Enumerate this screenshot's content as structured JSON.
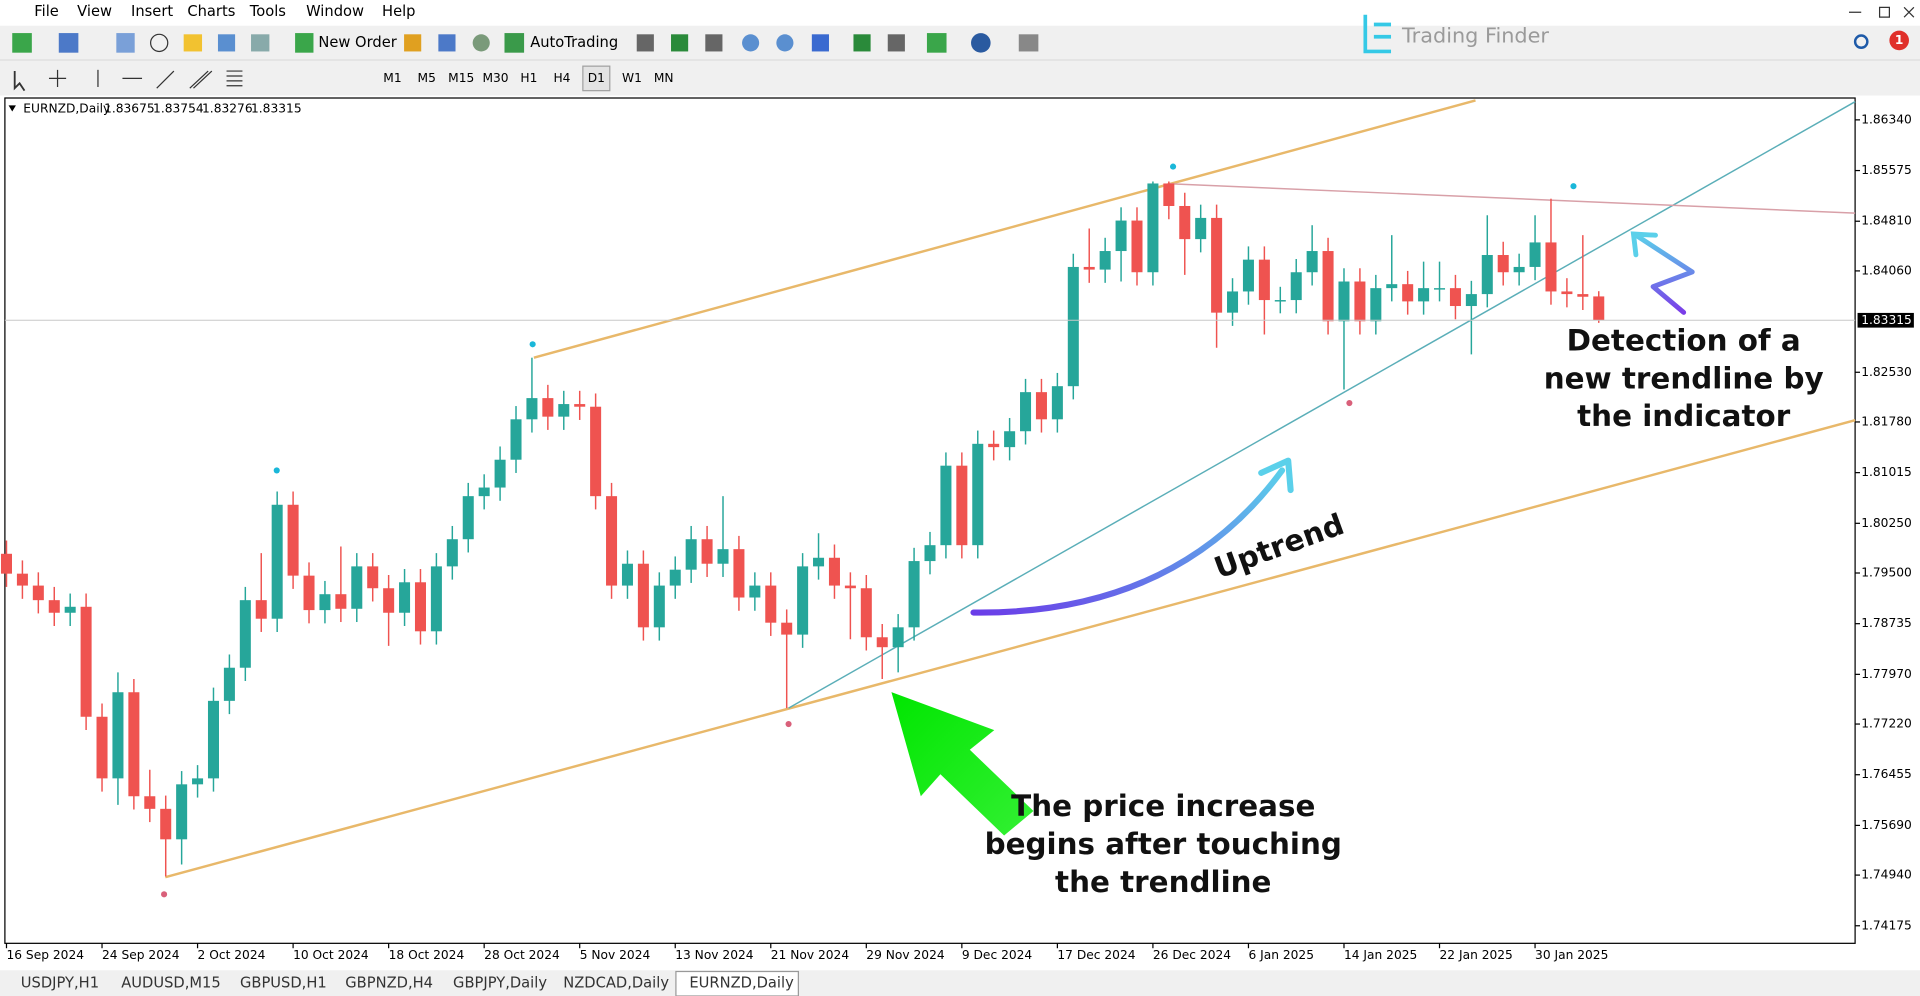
{
  "ui": {
    "menu": [
      "File",
      "View",
      "Insert",
      "Charts",
      "Tools",
      "Window",
      "Help"
    ],
    "toolbar": [
      "New Order",
      "AutoTrading"
    ],
    "timeframes": [
      "M1",
      "M5",
      "M15",
      "M30",
      "H1",
      "H4",
      "D1",
      "W1",
      "MN"
    ],
    "logo": "Trading Finder",
    "notifications": 1,
    "tabs": [
      "USDJPY,H1",
      "AUDUSD,M15",
      "GBPUSD,H1",
      "GBPNZD,H4",
      "GBPJPY,Daily",
      "NZDCAD,Daily",
      "EURNZD,Daily"
    ]
  },
  "chart_data": {
    "type": "candlestick",
    "title": "EURNZD,Daily",
    "up_color": "#26a69a",
    "down_color": "#ef5350",
    "grid": false,
    "xlim": [
      -0.1,
      116.1
    ],
    "xticks": [
      {
        "value": 0,
        "label": "16 Sep 2024"
      },
      {
        "value": 6,
        "label": "24 Sep 2024"
      },
      {
        "value": 12,
        "label": "2 Oct 2024"
      },
      {
        "value": 18,
        "label": "10 Oct 2024"
      },
      {
        "value": 24,
        "label": "18 Oct 2024"
      },
      {
        "value": 30,
        "label": "28 Oct 2024"
      },
      {
        "value": 36,
        "label": "5 Nov 2024"
      },
      {
        "value": 42,
        "label": "13 Nov 2024"
      },
      {
        "value": 48,
        "label": "21 Nov 2024"
      },
      {
        "value": 54,
        "label": "29 Nov 2024"
      },
      {
        "value": 60,
        "label": "9 Dec 2024"
      },
      {
        "value": 66,
        "label": "17 Dec 2024"
      },
      {
        "value": 72,
        "label": "26 Dec 2024"
      },
      {
        "value": 78,
        "label": "6 Jan 2025"
      },
      {
        "value": 84,
        "label": "14 Jan 2025"
      },
      {
        "value": 90,
        "label": "22 Jan 2025"
      },
      {
        "value": 96,
        "label": "30 Jan 2025"
      }
    ],
    "ylim": [
      1.7391,
      1.8667
    ],
    "yticks": [
      {
        "value": 1.8634,
        "label": "1.86340"
      },
      1.85575,
      {
        "value": 1.8481,
        "label": "1.84810"
      },
      {
        "value": 1.8406,
        "label": "1.84060"
      },
      {
        "value": 1.8253,
        "label": "1.82530"
      },
      {
        "value": 1.8178,
        "label": "1.81780"
      },
      1.81015,
      {
        "value": 1.8025,
        "label": "1.80250"
      },
      {
        "value": 1.795,
        "label": "1.79500"
      },
      1.78735,
      {
        "value": 1.7797,
        "label": "1.77970"
      },
      {
        "value": 1.7722,
        "label": "1.77220"
      },
      1.76455,
      {
        "value": 1.7569,
        "label": "1.75690"
      },
      {
        "value": 1.7494,
        "label": "1.74940"
      },
      1.74175
    ],
    "open": [
      1.7979,
      1.7949,
      1.7931,
      1.7909,
      1.789,
      1.7899,
      1.7733,
      1.764,
      1.777,
      1.7613,
      1.7594,
      1.7548,
      1.7631,
      1.764,
      1.7757,
      1.7807,
      1.7909,
      1.7881,
      1.8053,
      1.7946,
      1.7894,
      1.7918,
      1.7896,
      1.796,
      1.7927,
      1.789,
      1.7936,
      1.7862,
      1.796,
      1.8001,
      1.8066,
      1.8079,
      1.8121,
      1.8182,
      1.8214,
      1.8186,
      1.8205,
      1.8201,
      1.8066,
      1.7931,
      1.7964,
      1.7868,
      1.7931,
      1.7955,
      1.8001,
      1.7964,
      1.7986,
      1.7913,
      1.7931,
      1.7875,
      1.7857,
      1.796,
      1.7973,
      1.7931,
      1.7927,
      1.7853,
      1.7838,
      1.7868,
      1.7968,
      1.7992,
      1.8112,
      1.7992,
      1.8145,
      1.814,
      1.8164,
      1.8223,
      1.8182,
      1.8232,
      1.8412,
      1.8408,
      1.8436,
      1.8482,
      1.8404,
      1.8538,
      1.8504,
      1.8454,
      1.8486,
      1.8343,
      1.8375,
      1.8423,
      1.8362,
      1.8362,
      1.8404,
      1.8436,
      1.833,
      1.839,
      1.833,
      1.838,
      1.8386,
      1.836,
      1.838,
      1.838,
      1.8353,
      1.8371,
      1.843,
      1.8404,
      1.8412,
      1.8449,
      1.8375,
      1.8371,
      1.83675
    ],
    "high": [
      1.7999,
      1.7969,
      1.7951,
      1.7929,
      1.7919,
      1.7919,
      1.7753,
      1.78,
      1.779,
      1.7653,
      1.7614,
      1.7651,
      1.766,
      1.7777,
      1.7827,
      1.7929,
      1.798,
      1.8073,
      1.8073,
      1.7966,
      1.7938,
      1.799,
      1.798,
      1.798,
      1.7947,
      1.7956,
      1.7956,
      1.798,
      1.8021,
      1.8086,
      1.8099,
      1.8141,
      1.8202,
      1.8275,
      1.8234,
      1.8225,
      1.8225,
      1.8221,
      1.8086,
      1.7984,
      1.7984,
      1.7951,
      1.7975,
      1.8021,
      1.8021,
      1.8066,
      1.8006,
      1.7951,
      1.7951,
      1.7895,
      1.798,
      1.801,
      1.7993,
      1.7951,
      1.7947,
      1.7873,
      1.7888,
      1.7988,
      1.8012,
      1.8132,
      1.8132,
      1.8165,
      1.8165,
      1.8184,
      1.8243,
      1.8243,
      1.8252,
      1.8432,
      1.847,
      1.8456,
      1.8502,
      1.8502,
      1.8541,
      1.8541,
      1.8524,
      1.8506,
      1.8506,
      1.8395,
      1.8443,
      1.8443,
      1.8382,
      1.8424,
      1.8475,
      1.8456,
      1.841,
      1.841,
      1.84,
      1.846,
      1.8406,
      1.842,
      1.842,
      1.84,
      1.8391,
      1.849,
      1.845,
      1.8432,
      1.849,
      1.8515,
      1.8395,
      1.846,
      1.83754
    ],
    "low": [
      1.7929,
      1.7911,
      1.7889,
      1.787,
      1.787,
      1.7713,
      1.762,
      1.76,
      1.7593,
      1.7574,
      1.7492,
      1.751,
      1.7611,
      1.762,
      1.7737,
      1.7787,
      1.7861,
      1.7861,
      1.7926,
      1.7874,
      1.7874,
      1.7876,
      1.7876,
      1.7907,
      1.784,
      1.787,
      1.7842,
      1.7842,
      1.794,
      1.7981,
      1.8046,
      1.8059,
      1.8101,
      1.8162,
      1.8166,
      1.8166,
      1.8181,
      1.8046,
      1.7911,
      1.7911,
      1.7848,
      1.7848,
      1.7911,
      1.7935,
      1.7944,
      1.7944,
      1.7893,
      1.7893,
      1.7855,
      1.7746,
      1.7837,
      1.794,
      1.7911,
      1.785,
      1.7833,
      1.779,
      1.78,
      1.7848,
      1.7948,
      1.7972,
      1.7972,
      1.7972,
      1.812,
      1.812,
      1.8144,
      1.8162,
      1.8162,
      1.8212,
      1.8388,
      1.8388,
      1.839,
      1.8384,
      1.8384,
      1.8484,
      1.84,
      1.8434,
      1.829,
      1.8323,
      1.8355,
      1.831,
      1.8342,
      1.8342,
      1.8384,
      1.831,
      1.8227,
      1.831,
      1.831,
      1.836,
      1.834,
      1.834,
      1.836,
      1.8333,
      1.828,
      1.8351,
      1.8384,
      1.8384,
      1.8392,
      1.8355,
      1.8351,
      1.8347,
      1.83276
    ],
    "close": [
      1.7949,
      1.7931,
      1.7909,
      1.789,
      1.7899,
      1.7733,
      1.764,
      1.777,
      1.7613,
      1.7594,
      1.7548,
      1.7631,
      1.764,
      1.7757,
      1.7807,
      1.7909,
      1.7881,
      1.8053,
      1.7946,
      1.7894,
      1.7918,
      1.7896,
      1.796,
      1.7927,
      1.789,
      1.7936,
      1.7862,
      1.796,
      1.8001,
      1.8066,
      1.8079,
      1.8121,
      1.8182,
      1.8214,
      1.8186,
      1.8205,
      1.8201,
      1.8066,
      1.7931,
      1.7964,
      1.7868,
      1.7931,
      1.7955,
      1.8001,
      1.7964,
      1.7986,
      1.7913,
      1.7931,
      1.7875,
      1.7857,
      1.796,
      1.7973,
      1.7931,
      1.7927,
      1.7853,
      1.7838,
      1.7868,
      1.7968,
      1.7992,
      1.8112,
      1.7992,
      1.8145,
      1.814,
      1.8164,
      1.8223,
      1.8182,
      1.8232,
      1.8412,
      1.8408,
      1.8436,
      1.8482,
      1.8404,
      1.8538,
      1.8504,
      1.8454,
      1.8486,
      1.8343,
      1.8375,
      1.8423,
      1.8362,
      1.8362,
      1.8404,
      1.8436,
      1.833,
      1.839,
      1.833,
      1.838,
      1.8386,
      1.836,
      1.838,
      1.838,
      1.8353,
      1.8371,
      1.843,
      1.8404,
      1.8412,
      1.8449,
      1.8375,
      1.8371,
      1.8367,
      1.83315
    ],
    "annotations": {
      "detection": [
        "Detection of a",
        "new trendline by",
        "the indicator"
      ],
      "uptrend": "Uptrend",
      "price_increase": [
        "The price increase",
        "begins after touching",
        "the trendline"
      ]
    }
  }
}
